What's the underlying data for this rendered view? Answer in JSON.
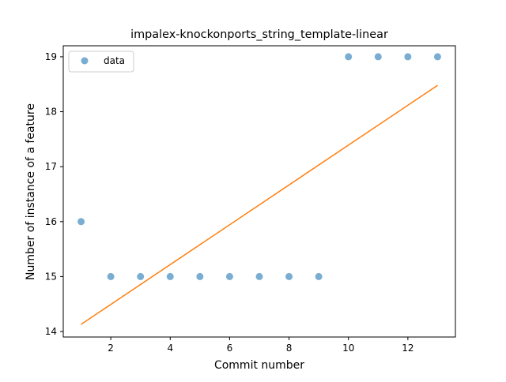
{
  "chart_data": {
    "type": "scatter",
    "title": "impalex-knockonports_string_template-linear",
    "xlabel": "Commit number",
    "ylabel": "Number of instance of a feature",
    "xlim": [
      0.4,
      13.6
    ],
    "ylim": [
      13.9,
      19.2
    ],
    "xticks": [
      2,
      4,
      6,
      8,
      10,
      12
    ],
    "yticks": [
      14,
      15,
      16,
      17,
      18,
      19
    ],
    "grid": false,
    "legend": {
      "placement": "top-left",
      "entries": [
        "data"
      ]
    },
    "series": [
      {
        "name": "data",
        "kind": "scatter",
        "color": "#1f77b4",
        "points": [
          {
            "x": 1,
            "y": 16
          },
          {
            "x": 2,
            "y": 15
          },
          {
            "x": 3,
            "y": 15
          },
          {
            "x": 4,
            "y": 15
          },
          {
            "x": 5,
            "y": 15
          },
          {
            "x": 6,
            "y": 15
          },
          {
            "x": 7,
            "y": 15
          },
          {
            "x": 8,
            "y": 15
          },
          {
            "x": 9,
            "y": 15
          },
          {
            "x": 10,
            "y": 19
          },
          {
            "x": 11,
            "y": 19
          },
          {
            "x": 12,
            "y": 19
          },
          {
            "x": 13,
            "y": 19
          }
        ]
      },
      {
        "kind": "line",
        "color": "#ff7f0e",
        "points": [
          {
            "x": 1,
            "y": 14.13
          },
          {
            "x": 13,
            "y": 18.48
          }
        ]
      }
    ]
  }
}
